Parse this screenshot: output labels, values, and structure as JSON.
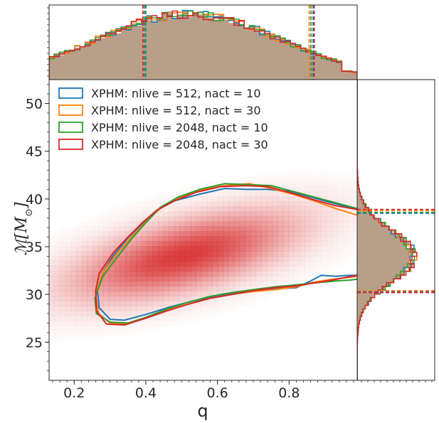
{
  "chart_data": {
    "type": "corner-plot",
    "xlabel": "q",
    "ylabel": "ℳ[M⊙]",
    "ylabel_main": "ℳ[",
    "ylabel_M": "M",
    "ylabel_sub": "⊙",
    "ylabel_close": "]",
    "xlim": [
      0.13,
      0.99
    ],
    "ylim": [
      21.0,
      52.5
    ],
    "xticks": [
      0.2,
      0.4,
      0.6,
      0.8
    ],
    "xtick_labels": [
      "0.2",
      "0.4",
      "0.6",
      "0.8"
    ],
    "yticks": [
      25,
      30,
      35,
      40,
      45,
      50
    ],
    "ytick_labels": [
      "25",
      "30",
      "35",
      "40",
      "45",
      "50"
    ],
    "density_peak": {
      "q": 0.5,
      "chirp_mass": 33.8
    },
    "histogram_fill_color": "#b39a84",
    "heatmap_color": "#d62728",
    "legend_position": "top-left",
    "series": [
      {
        "name": "XPHM: nlive = 512, nact = 10",
        "color": "#1f77b4",
        "q_interval": [
          0.397,
          0.867
        ],
        "mc_interval": [
          30.3,
          38.5
        ],
        "contour": [
          [
            0.99,
            38.9
          ],
          [
            0.93,
            39.5
          ],
          [
            0.86,
            40.2
          ],
          [
            0.8,
            40.8
          ],
          [
            0.74,
            41.0
          ],
          [
            0.68,
            41.0
          ],
          [
            0.62,
            41.1
          ],
          [
            0.55,
            40.5
          ],
          [
            0.48,
            39.8
          ],
          [
            0.43,
            38.8
          ],
          [
            0.39,
            37.4
          ],
          [
            0.35,
            35.9
          ],
          [
            0.31,
            34.1
          ],
          [
            0.28,
            32.3
          ],
          [
            0.265,
            30.4
          ],
          [
            0.27,
            28.6
          ],
          [
            0.3,
            27.4
          ],
          [
            0.34,
            27.3
          ],
          [
            0.4,
            27.9
          ],
          [
            0.46,
            28.6
          ],
          [
            0.52,
            29.2
          ],
          [
            0.58,
            29.7
          ],
          [
            0.64,
            30.1
          ],
          [
            0.7,
            30.4
          ],
          [
            0.76,
            30.6
          ],
          [
            0.82,
            30.7
          ],
          [
            0.86,
            31.4
          ],
          [
            0.89,
            32.0
          ],
          [
            0.93,
            31.9
          ],
          [
            0.97,
            32.0
          ],
          [
            0.99,
            32.0
          ]
        ]
      },
      {
        "name": "XPHM: nlive = 512, nact = 30",
        "color": "#ff7f0e",
        "q_interval": [
          0.392,
          0.856
        ],
        "mc_interval": [
          30.4,
          38.8
        ],
        "contour": [
          [
            0.99,
            38.3
          ],
          [
            0.93,
            39.0
          ],
          [
            0.87,
            39.8
          ],
          [
            0.81,
            40.5
          ],
          [
            0.75,
            41.1
          ],
          [
            0.69,
            41.6
          ],
          [
            0.62,
            41.4
          ],
          [
            0.56,
            41.0
          ],
          [
            0.49,
            40.1
          ],
          [
            0.44,
            39.0
          ],
          [
            0.4,
            37.6
          ],
          [
            0.36,
            36.0
          ],
          [
            0.32,
            34.3
          ],
          [
            0.28,
            32.3
          ],
          [
            0.26,
            30.0
          ],
          [
            0.268,
            28.0
          ],
          [
            0.3,
            27.0
          ],
          [
            0.35,
            26.9
          ],
          [
            0.4,
            27.6
          ],
          [
            0.46,
            28.4
          ],
          [
            0.52,
            29.0
          ],
          [
            0.58,
            29.6
          ],
          [
            0.64,
            30.0
          ],
          [
            0.7,
            30.3
          ],
          [
            0.76,
            30.5
          ],
          [
            0.82,
            30.8
          ],
          [
            0.87,
            31.3
          ],
          [
            0.92,
            31.6
          ],
          [
            0.97,
            31.8
          ],
          [
            0.99,
            31.9
          ]
        ]
      },
      {
        "name": "XPHM: nlive = 2048, nact = 10",
        "color": "#2ca02c",
        "q_interval": [
          0.4,
          0.861
        ],
        "mc_interval": [
          30.2,
          38.6
        ],
        "contour": [
          [
            0.99,
            39.0
          ],
          [
            0.93,
            39.6
          ],
          [
            0.87,
            40.2
          ],
          [
            0.81,
            40.8
          ],
          [
            0.75,
            41.4
          ],
          [
            0.69,
            41.5
          ],
          [
            0.62,
            41.6
          ],
          [
            0.55,
            41.0
          ],
          [
            0.49,
            40.2
          ],
          [
            0.44,
            39.1
          ],
          [
            0.4,
            37.5
          ],
          [
            0.36,
            35.8
          ],
          [
            0.32,
            33.9
          ],
          [
            0.28,
            31.9
          ],
          [
            0.258,
            29.6
          ],
          [
            0.262,
            28.0
          ],
          [
            0.3,
            27.1
          ],
          [
            0.35,
            27.0
          ],
          [
            0.4,
            27.6
          ],
          [
            0.46,
            28.5
          ],
          [
            0.52,
            29.2
          ],
          [
            0.58,
            29.8
          ],
          [
            0.64,
            30.2
          ],
          [
            0.7,
            30.5
          ],
          [
            0.76,
            30.8
          ],
          [
            0.82,
            31.0
          ],
          [
            0.87,
            31.2
          ],
          [
            0.93,
            31.4
          ],
          [
            0.97,
            31.5
          ],
          [
            0.99,
            31.6
          ]
        ]
      },
      {
        "name": "XPHM: nlive = 2048, nact = 30",
        "color": "#d62728",
        "q_interval": [
          0.392,
          0.87
        ],
        "mc_interval": [
          30.2,
          38.9
        ],
        "contour": [
          [
            0.99,
            38.9
          ],
          [
            0.93,
            39.3
          ],
          [
            0.87,
            39.9
          ],
          [
            0.8,
            40.7
          ],
          [
            0.74,
            41.3
          ],
          [
            0.68,
            41.4
          ],
          [
            0.61,
            41.3
          ],
          [
            0.54,
            40.7
          ],
          [
            0.48,
            39.8
          ],
          [
            0.43,
            38.8
          ],
          [
            0.39,
            37.5
          ],
          [
            0.35,
            36.0
          ],
          [
            0.31,
            34.4
          ],
          [
            0.27,
            32.2
          ],
          [
            0.26,
            30.4
          ],
          [
            0.262,
            28.3
          ],
          [
            0.29,
            26.9
          ],
          [
            0.34,
            26.8
          ],
          [
            0.4,
            27.5
          ],
          [
            0.46,
            28.3
          ],
          [
            0.52,
            29.0
          ],
          [
            0.58,
            29.6
          ],
          [
            0.64,
            30.0
          ],
          [
            0.7,
            30.4
          ],
          [
            0.76,
            30.7
          ],
          [
            0.82,
            30.9
          ],
          [
            0.87,
            31.2
          ],
          [
            0.92,
            31.5
          ],
          [
            0.96,
            31.8
          ],
          [
            0.99,
            32.0
          ]
        ]
      }
    ]
  }
}
